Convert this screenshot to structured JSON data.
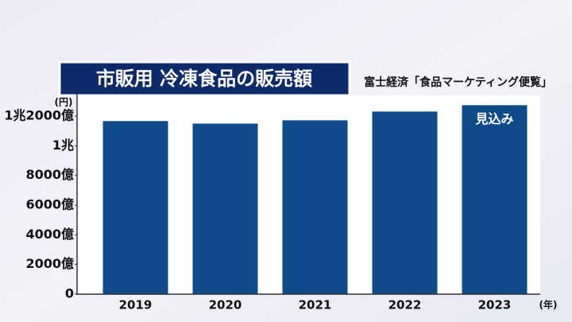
{
  "chart_data": {
    "type": "bar",
    "title": "市販用 冷凍食品の販売額",
    "source": "富士経済「食品マーケティング便覧」",
    "y_unit": "(円)",
    "x_unit": "(年)",
    "annotation": "見込み",
    "categories": [
      "2019",
      "2020",
      "2021",
      "2022",
      "2023"
    ],
    "values": [
      11670,
      11500,
      11720,
      12310,
      12740
    ],
    "color": "#0f4a8a",
    "ylim": [
      0,
      13400
    ],
    "yticks": [
      0,
      {
        "value": 2000,
        "label": "2000億"
      },
      {
        "value": 4000,
        "label": "4000億"
      },
      {
        "value": 6000,
        "label": "6000億"
      },
      {
        "value": 8000,
        "label": "8000億"
      },
      {
        "value": 10000,
        "label": "1兆"
      },
      {
        "value": 12000,
        "label": "1兆2000億"
      }
    ],
    "grid": false
  }
}
